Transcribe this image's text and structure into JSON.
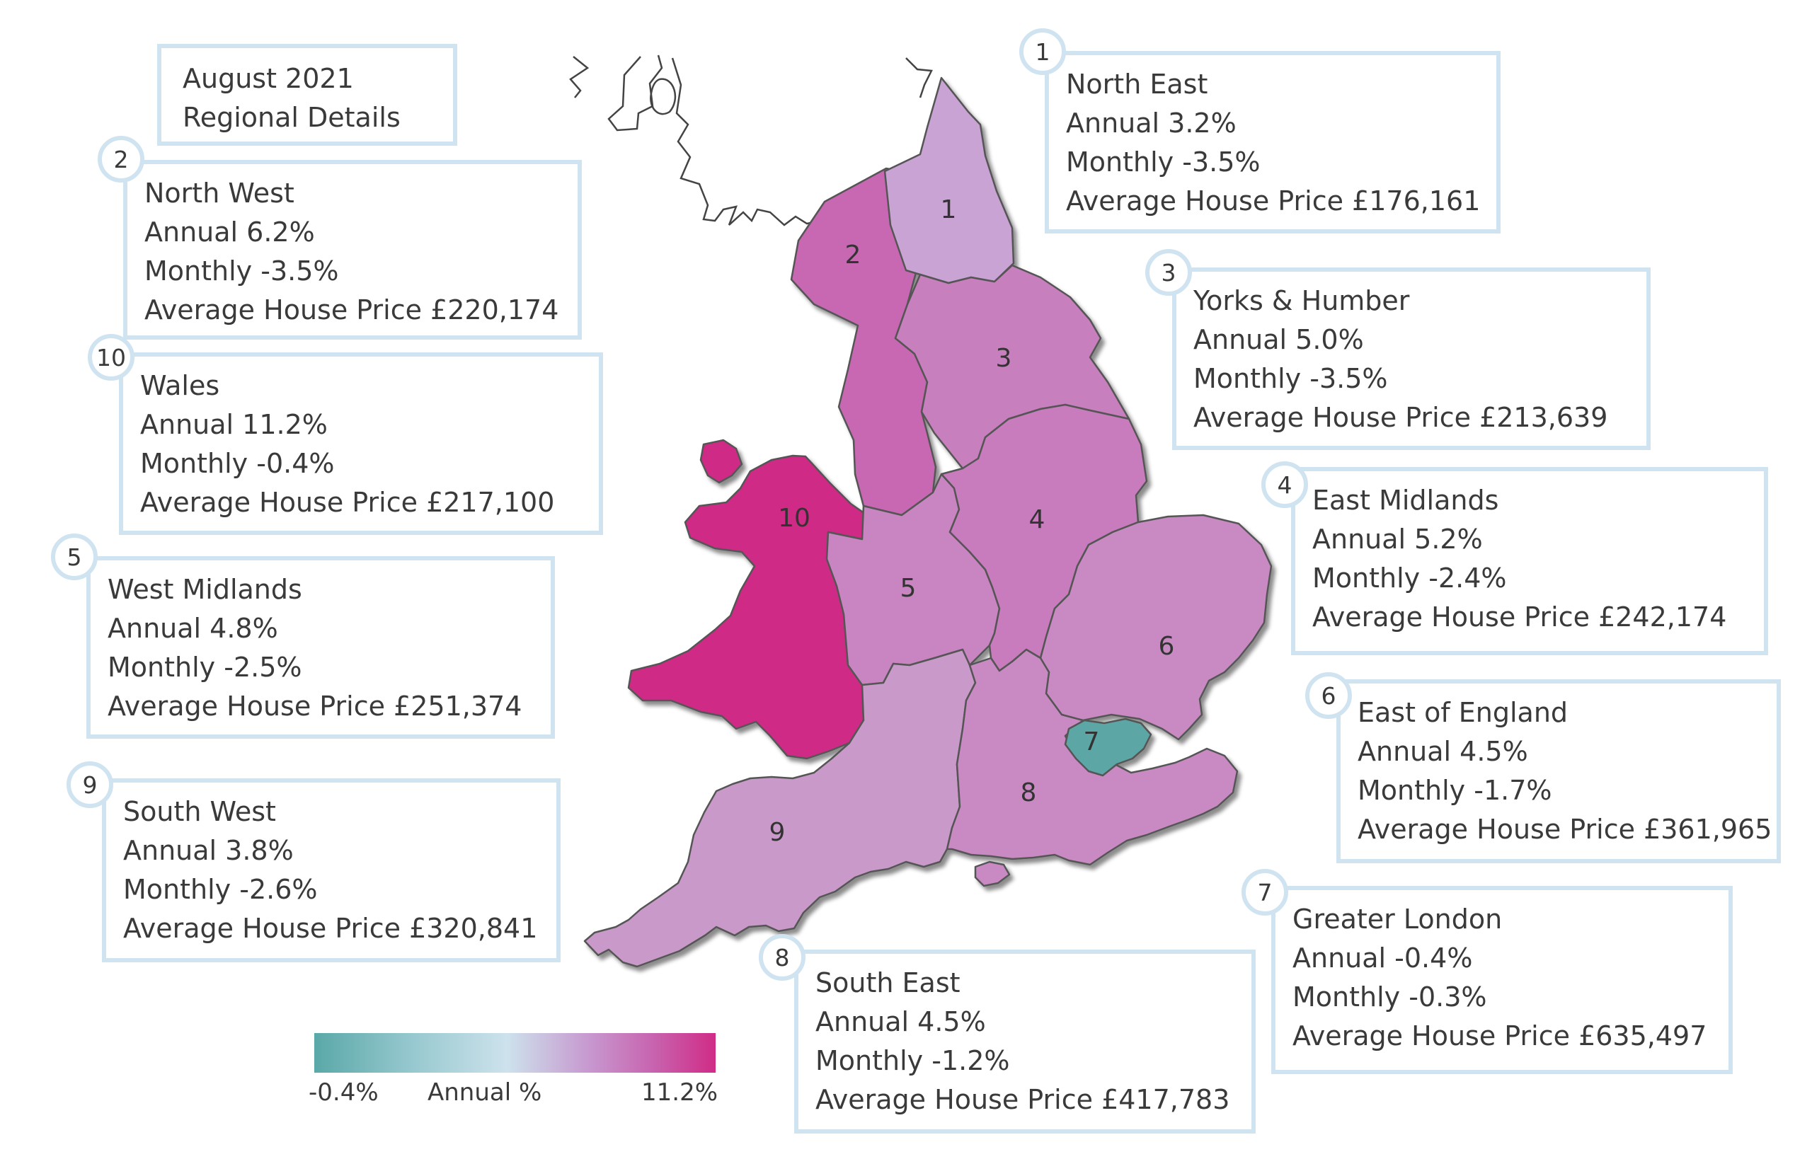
{
  "header": {
    "line1": "August 2021",
    "line2": "Regional Details"
  },
  "regions": [
    {
      "num": "1",
      "name": "North East",
      "annual": "Annual 3.2%",
      "monthly": "Monthly -3.5%",
      "price": "Average House Price £176,161",
      "annual_pct": 3.2,
      "color": "#c9a3d3"
    },
    {
      "num": "2",
      "name": "North West",
      "annual": "Annual 6.2%",
      "monthly": "Monthly -3.5%",
      "price": "Average House Price £220,174",
      "annual_pct": 6.2,
      "color": "#c867b3"
    },
    {
      "num": "3",
      "name": "Yorks & Humber",
      "annual": "Annual 5.0%",
      "monthly": "Monthly -3.5%",
      "price": "Average House Price £213,639",
      "annual_pct": 5.0,
      "color": "#c77fbd"
    },
    {
      "num": "4",
      "name": "East Midlands",
      "annual": "Annual 5.2%",
      "monthly": "Monthly -2.4%",
      "price": "Average House Price £242,174",
      "annual_pct": 5.2,
      "color": "#c87bbd"
    },
    {
      "num": "5",
      "name": "West Midlands",
      "annual": "Annual 4.8%",
      "monthly": "Monthly -2.5%",
      "price": "Average House Price £251,374",
      "annual_pct": 4.8,
      "color": "#c985c1"
    },
    {
      "num": "6",
      "name": "East of England",
      "annual": "Annual 4.5%",
      "monthly": "Monthly -1.7%",
      "price": "Average House Price £361,965",
      "annual_pct": 4.5,
      "color": "#c98ac4"
    },
    {
      "num": "7",
      "name": "Greater London",
      "annual": "Annual -0.4%",
      "monthly": "Monthly -0.3%",
      "price": "Average House Price £635,497",
      "annual_pct": -0.4,
      "color": "#5ca7a6"
    },
    {
      "num": "8",
      "name": "South East",
      "annual": "Annual 4.5%",
      "monthly": "Monthly -1.2%",
      "price": "Average House Price £417,783",
      "annual_pct": 4.5,
      "color": "#c98ac4"
    },
    {
      "num": "9",
      "name": "South West",
      "annual": "Annual 3.8%",
      "monthly": "Monthly -2.6%",
      "price": "Average House Price £320,841",
      "annual_pct": 3.8,
      "color": "#c99ac9"
    },
    {
      "num": "10",
      "name": "Wales",
      "annual": "Annual 11.2%",
      "monthly": "Monthly -0.4%",
      "price": "Average House Price £217,100",
      "annual_pct": 11.2,
      "color": "#d02a87"
    }
  ],
  "legend": {
    "min": "-0.4%",
    "label": "Annual %",
    "max": "11.2%"
  }
}
